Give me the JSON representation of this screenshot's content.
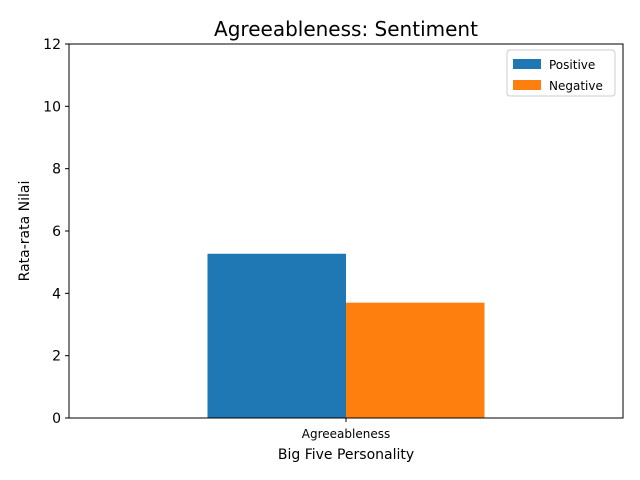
{
  "chart_data": {
    "type": "bar",
    "title": "Agreeableness: Sentiment",
    "xlabel": "Big Five Personality",
    "ylabel": "Rata-rata Nilai",
    "categories": [
      "Agreeableness"
    ],
    "series": [
      {
        "name": "Positive",
        "values": [
          5.27
        ],
        "color": "#1f77b4"
      },
      {
        "name": "Negative",
        "values": [
          3.7
        ],
        "color": "#ff7f0e"
      }
    ],
    "ylim": [
      0,
      12
    ],
    "yticks": [
      0,
      2,
      4,
      6,
      8,
      10,
      12
    ],
    "grid": false,
    "legend": "top-right"
  }
}
